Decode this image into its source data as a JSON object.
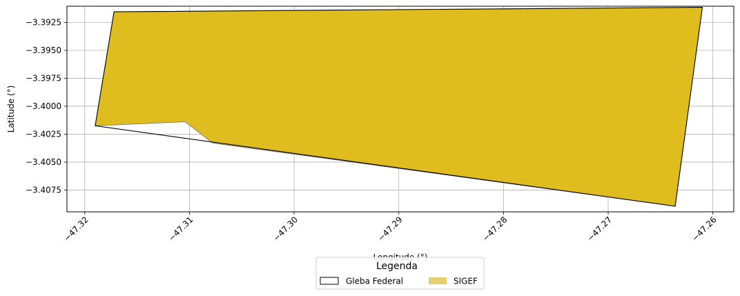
{
  "chart_data": {
    "type": "map",
    "xlabel": "Longitude (°)",
    "ylabel": "Latitude (°)",
    "xlim": [
      -47.3217,
      -47.258
    ],
    "ylim": [
      -3.40945,
      -3.39105
    ],
    "grid": true,
    "x_ticks": [
      -47.32,
      -47.31,
      -47.3,
      -47.29,
      -47.28,
      -47.27,
      -47.26
    ],
    "x_tick_labels": [
      "−47.32",
      "−47.31",
      "−47.30",
      "−47.29",
      "−47.28",
      "−47.27",
      "−47.26"
    ],
    "y_ticks": [
      -3.3925,
      -3.395,
      -3.3975,
      -3.4,
      -3.4025,
      -3.405,
      -3.4075
    ],
    "y_tick_labels": [
      "−3.3925",
      "−3.3950",
      "−3.3975",
      "−3.4000",
      "−3.4025",
      "−3.4050",
      "−3.4075"
    ],
    "layers": {
      "sigef": {
        "name": "SIGEF",
        "fill": "#dfbd1f",
        "edge": "#555577",
        "polygon": [
          [
            -47.3172,
            -3.39155
          ],
          [
            -47.261,
            -3.39115
          ],
          [
            -47.2636,
            -3.40895
          ],
          [
            -47.3078,
            -3.4033
          ],
          [
            -47.3104,
            -3.4014
          ],
          [
            -47.319,
            -3.40175
          ]
        ]
      },
      "gleba": {
        "name": "Gleba Federal",
        "edge": "#000000",
        "polygon": [
          [
            -47.3172,
            -3.39155
          ],
          [
            -47.261,
            -3.39115
          ],
          [
            -47.2636,
            -3.40895
          ],
          [
            -47.319,
            -3.40175
          ]
        ]
      }
    },
    "legend": {
      "title": "Legenda",
      "placement": "bottom-center",
      "entries": [
        {
          "label": "Gleba Federal",
          "style": "outline",
          "color": "#000000"
        },
        {
          "label": "SIGEF",
          "style": "filled",
          "color": "#e6cf6e"
        }
      ]
    }
  }
}
